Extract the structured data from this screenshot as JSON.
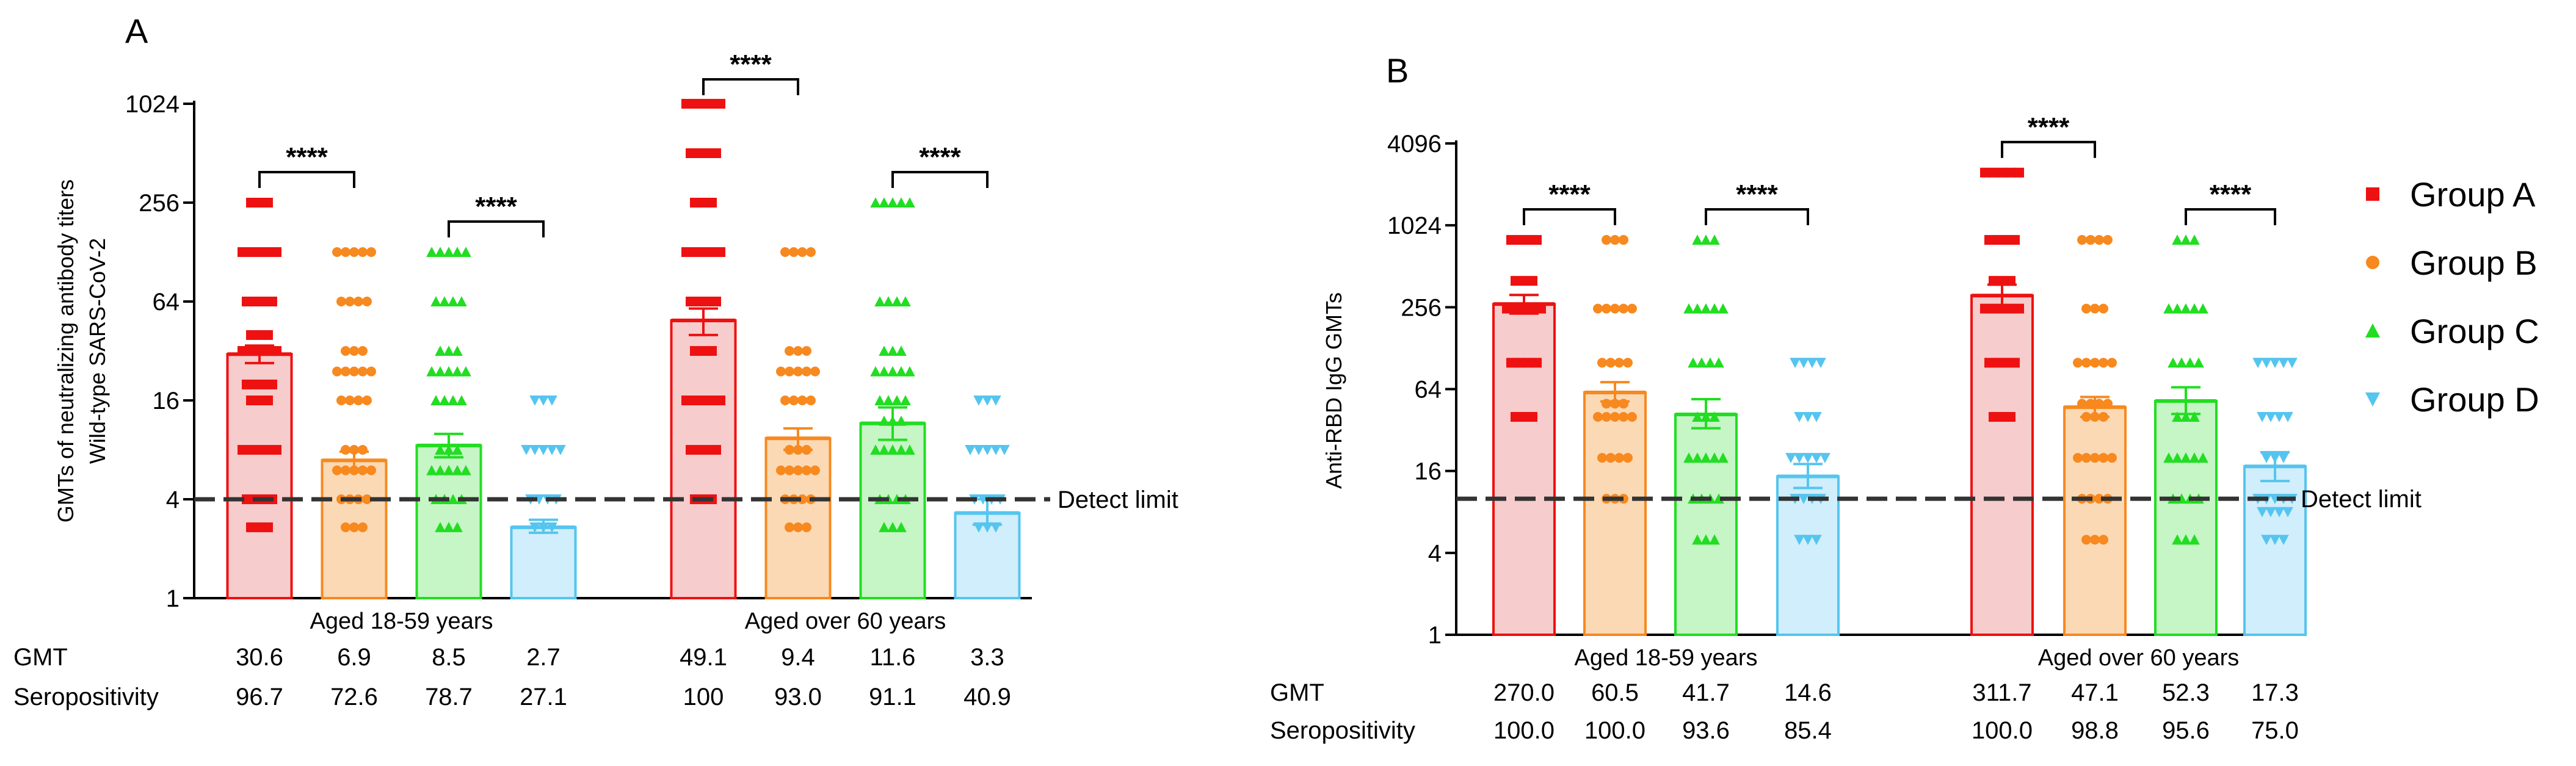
{
  "chart_data": [
    {
      "type": "bar",
      "panel_label": "A",
      "ylabel_lines": [
        "GMTs of neutralizing antibody titers",
        "Wild-type SARS-CoV-2"
      ],
      "yscale": "log2",
      "ylim": [
        1,
        1024
      ],
      "yticks": [
        1,
        4,
        16,
        64,
        256,
        1024
      ],
      "ytick_labels": [
        "1",
        "4",
        "16",
        "64",
        "256",
        "1024"
      ],
      "detect_limit": 4,
      "detect_limit_label": "Detect limit",
      "age_groups": [
        {
          "label": "Aged 18-59 years",
          "bars": [
            {
              "group": "Group A",
              "gmt": 30.6,
              "err_low": 27.0,
              "err_high": 34.5,
              "seropositivity": 96.7,
              "points": [
                2.7,
                4,
                8,
                16,
                20,
                32,
                40,
                64,
                128,
                256
              ]
            },
            {
              "group": "Group B",
              "gmt": 6.9,
              "err_low": 6.1,
              "err_high": 7.8,
              "seropositivity": 72.6,
              "points": [
                2.7,
                4,
                6,
                8,
                16,
                24,
                32,
                64,
                128
              ]
            },
            {
              "group": "Group C",
              "gmt": 8.5,
              "err_low": 7.2,
              "err_high": 10.0,
              "seropositivity": 78.7,
              "points": [
                2.7,
                4,
                6,
                8,
                16,
                24,
                32,
                64,
                128
              ]
            },
            {
              "group": "Group D",
              "gmt": 2.7,
              "err_low": 2.5,
              "err_high": 3.0,
              "seropositivity": 27.1,
              "points": [
                2.7,
                4,
                8,
                16
              ]
            }
          ]
        },
        {
          "label": "Aged over 60 years",
          "bars": [
            {
              "group": "Group A",
              "gmt": 49.1,
              "err_low": 40.0,
              "err_high": 58.0,
              "seropositivity": 100,
              "points": [
                4,
                8,
                16,
                32,
                64,
                128,
                256,
                512,
                1024
              ]
            },
            {
              "group": "Group B",
              "gmt": 9.4,
              "err_low": 8.0,
              "err_high": 10.8,
              "seropositivity": 93.0,
              "points": [
                2.7,
                4,
                6,
                8,
                16,
                24,
                32,
                128
              ]
            },
            {
              "group": "Group C",
              "gmt": 11.6,
              "err_low": 9.2,
              "err_high": 14.5,
              "seropositivity": 91.1,
              "points": [
                2.7,
                4,
                8,
                12,
                16,
                24,
                32,
                64,
                256
              ]
            },
            {
              "group": "Group D",
              "gmt": 3.3,
              "err_low": 2.8,
              "err_high": 4.0,
              "seropositivity": 40.9,
              "points": [
                2.7,
                4,
                8,
                16
              ]
            }
          ]
        }
      ],
      "significance": [
        {
          "age_group": 0,
          "from": 0,
          "to": 1,
          "label": "****"
        },
        {
          "age_group": 0,
          "from": 2,
          "to": 3,
          "label": "****"
        },
        {
          "age_group": 1,
          "from": 0,
          "to": 1,
          "label": "****"
        },
        {
          "age_group": 1,
          "from": 2,
          "to": 3,
          "label": "****"
        }
      ],
      "row_labels": [
        "GMT",
        "Seropositivity"
      ],
      "gmt_text": [
        "30.6",
        "6.9",
        "8.5",
        "2.7",
        "49.1",
        "9.4",
        "11.6",
        "3.3"
      ],
      "seropositivity_text": [
        "96.7",
        "72.6",
        "78.7",
        "27.1",
        "100",
        "93.0",
        "91.1",
        "40.9"
      ]
    },
    {
      "type": "bar",
      "panel_label": "B",
      "ylabel_lines": [
        "Anti-RBD IgG GMTs"
      ],
      "yscale": "log2",
      "ylim": [
        1,
        4096
      ],
      "yticks": [
        1,
        4,
        16,
        64,
        256,
        1024,
        4096
      ],
      "ytick_labels": [
        "1",
        "4",
        "16",
        "64",
        "256",
        "1024",
        "4096"
      ],
      "detect_limit": 10,
      "detect_limit_label": "Detect limit",
      "age_groups": [
        {
          "label": "Aged 18-59 years",
          "bars": [
            {
              "group": "Group A",
              "gmt": 270.0,
              "err_low": 230.0,
              "err_high": 315.0,
              "seropositivity": 100.0,
              "points": [
                40,
                100,
                250,
                400,
                800
              ]
            },
            {
              "group": "Group B",
              "gmt": 60.5,
              "err_low": 52.0,
              "err_high": 72.0,
              "seropositivity": 100.0,
              "points": [
                10,
                20,
                40,
                50,
                100,
                250,
                800
              ]
            },
            {
              "group": "Group C",
              "gmt": 41.7,
              "err_low": 33.0,
              "err_high": 54.0,
              "seropositivity": 93.6,
              "points": [
                5,
                10,
                20,
                40,
                100,
                250,
                800
              ]
            },
            {
              "group": "Group D",
              "gmt": 14.6,
              "err_low": 12.0,
              "err_high": 18.0,
              "seropositivity": 85.4,
              "points": [
                5,
                10,
                20,
                40,
                100
              ]
            }
          ]
        },
        {
          "label": "Aged over 60 years",
          "bars": [
            {
              "group": "Group A",
              "gmt": 311.7,
              "err_low": 255.0,
              "err_high": 375.0,
              "seropositivity": 100.0,
              "points": [
                40,
                100,
                250,
                400,
                800,
                2500
              ]
            },
            {
              "group": "Group B",
              "gmt": 47.1,
              "err_low": 40.0,
              "err_high": 56.0,
              "seropositivity": 98.8,
              "points": [
                5,
                10,
                20,
                40,
                50,
                100,
                250,
                800
              ]
            },
            {
              "group": "Group C",
              "gmt": 52.3,
              "err_low": 42.0,
              "err_high": 66.0,
              "seropositivity": 95.6,
              "points": [
                5,
                10,
                20,
                40,
                100,
                250,
                800
              ]
            },
            {
              "group": "Group D",
              "gmt": 17.3,
              "err_low": 13.5,
              "err_high": 22.0,
              "seropositivity": 75.0,
              "points": [
                5,
                8,
                10,
                20,
                40,
                100
              ]
            }
          ]
        }
      ],
      "significance": [
        {
          "age_group": 0,
          "from": 0,
          "to": 1,
          "label": "****"
        },
        {
          "age_group": 0,
          "from": 2,
          "to": 3,
          "label": "****"
        },
        {
          "age_group": 1,
          "from": 0,
          "to": 1,
          "label": "****"
        },
        {
          "age_group": 1,
          "from": 2,
          "to": 3,
          "label": "****"
        }
      ],
      "row_labels": [
        "GMT",
        "Seropositivity"
      ],
      "gmt_text": [
        "270.0",
        "60.5",
        "41.7",
        "14.6",
        "311.7",
        "47.1",
        "52.3",
        "17.3"
      ],
      "seropositivity_text": [
        "100.0",
        "100.0",
        "93.6",
        "85.4",
        "100.0",
        "98.8",
        "95.6",
        "75.0"
      ]
    }
  ],
  "legend": [
    {
      "label": "Group A",
      "marker": "square",
      "color": "#ee1111",
      "fill": "#f7cccc"
    },
    {
      "label": "Group B",
      "marker": "circle",
      "color": "#f7891f",
      "fill": "#fbd9b5"
    },
    {
      "label": "Group C",
      "marker": "triangle-up",
      "color": "#22dd22",
      "fill": "#c6f5c6"
    },
    {
      "label": "Group D",
      "marker": "triangle-down",
      "color": "#55c5ef",
      "fill": "#d0eefb"
    }
  ]
}
